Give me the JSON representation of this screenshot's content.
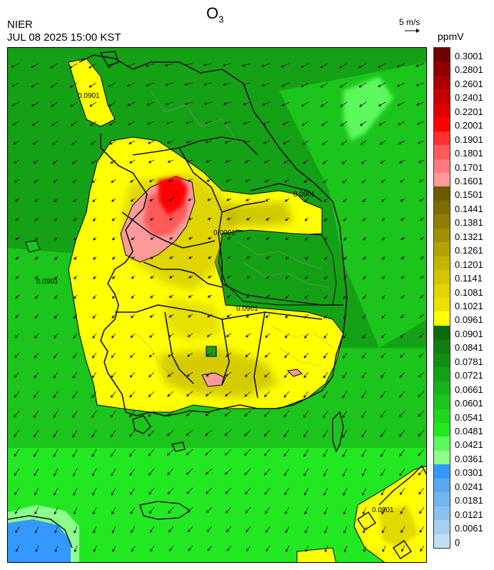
{
  "header": {
    "species_base": "O",
    "species_sub": "3",
    "organization": "NIER",
    "datetime": "JUL 08 2025 15:00 KST",
    "wind_reference": "5 m/s",
    "unit": "ppmV"
  },
  "map": {
    "contour_label": "0.0901",
    "wind_direction": "north-east to south-west (toward SW)"
  },
  "legend": {
    "labels": [
      "0.3001",
      "0.2801",
      "0.2601",
      "0.2401",
      "0.2201",
      "0.2001",
      "0.1901",
      "0.1801",
      "0.1701",
      "0.1601",
      "0.1501",
      "0.1441",
      "0.1381",
      "0.1321",
      "0.1261",
      "0.1201",
      "0.1141",
      "0.1081",
      "0.1021",
      "0.0961",
      "0.0901",
      "0.0841",
      "0.0781",
      "0.0721",
      "0.0661",
      "0.0601",
      "0.0541",
      "0.0481",
      "0.0421",
      "0.0361",
      "0.0301",
      "0.0241",
      "0.0181",
      "0.0121",
      "0.0061",
      "0"
    ],
    "colors": [
      "#6e0000",
      "#8c0000",
      "#a80000",
      "#c40000",
      "#e00000",
      "#ff0000",
      "#ff3030",
      "#ff5a5a",
      "#ff7a7a",
      "#ff9a9a",
      "#6b5a00",
      "#7d6c00",
      "#8f7e00",
      "#a19000",
      "#b3a200",
      "#c5b400",
      "#d5c400",
      "#e3d300",
      "#f0e000",
      "#ffff00",
      "#0b6b0b",
      "#0f7d0f",
      "#128f12",
      "#15a115",
      "#18b318",
      "#1bc51b",
      "#1ed71e",
      "#22e822",
      "#5cf85c",
      "#8cff8c",
      "#3399ff",
      "#5aa8f0",
      "#73b5f0",
      "#8cc2f0",
      "#a6cff0",
      "#c0def5"
    ]
  }
}
